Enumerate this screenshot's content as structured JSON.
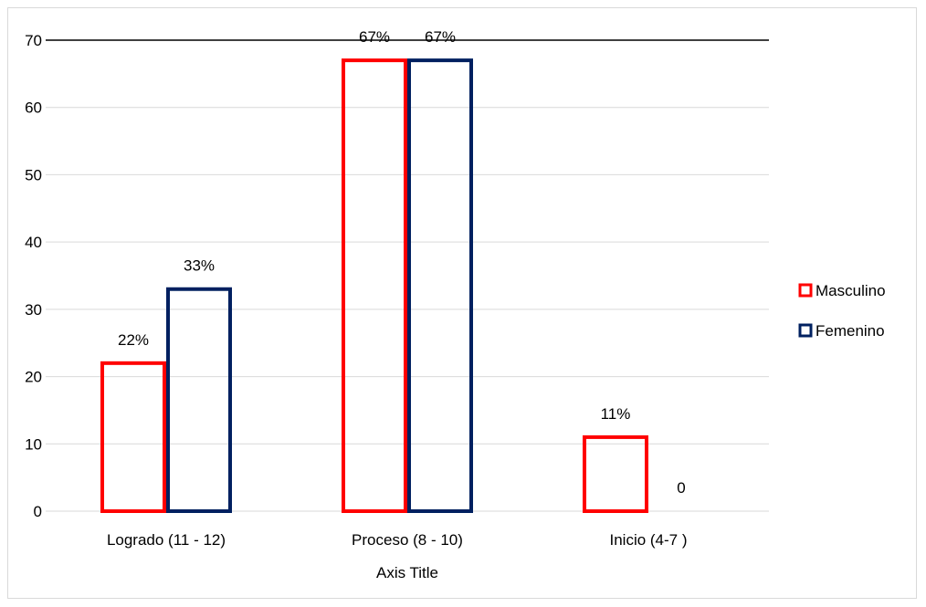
{
  "chart_data": {
    "type": "bar",
    "categories": [
      "Logrado (11 - 12)",
      "Proceso (8 - 10)",
      "Inicio (4-7 )"
    ],
    "series": [
      {
        "name": "Masculino",
        "values": [
          22,
          67,
          11
        ],
        "labels": [
          "22%",
          "67%",
          "11%"
        ],
        "color": "#ff0000"
      },
      {
        "name": "Femenino",
        "values": [
          33,
          67,
          0
        ],
        "labels": [
          "33%",
          "67%",
          "0"
        ],
        "color": "#002060"
      }
    ],
    "xlabel": "Axis Title",
    "ylabel": "",
    "ylim": [
      0,
      70
    ],
    "yticks": [
      0,
      10,
      20,
      30,
      40,
      50,
      60,
      70
    ],
    "grid": true,
    "legend": "right",
    "bar_fill": "none"
  }
}
